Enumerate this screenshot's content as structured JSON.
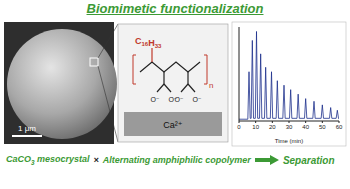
{
  "title": "Biomimetic functionalization",
  "sem_image": {
    "scale_bar": "1 μm"
  },
  "structure": {
    "substituent": "C16H33",
    "repeat": "n",
    "anion": "O⁻",
    "cation": "Ca²⁺"
  },
  "caption": {
    "left": "CaCO3 mesocrystal",
    "operator": "×",
    "right": "Alternating amphiphilic copolymer",
    "result": "Separation"
  },
  "chart_data": {
    "type": "line",
    "x_label": "Time (min)",
    "x": [
      0,
      5.3,
      6,
      6.7,
      7.3,
      8,
      8.7,
      9.8,
      10.5,
      11.2,
      12.3,
      13,
      13.7,
      15.3,
      16,
      16.7,
      18.8,
      19.5,
      20.2,
      22.3,
      23,
      23.7,
      26.3,
      27,
      27.7,
      30.3,
      31,
      31.7,
      34.8,
      35.5,
      36.2,
      39.3,
      40,
      40.7,
      44.3,
      45,
      45.7,
      49.3,
      50,
      50.7,
      54.3,
      55,
      55.7,
      58.3,
      59,
      59.7,
      60
    ],
    "values": [
      0.02,
      0.02,
      0.55,
      0.03,
      0.03,
      0.9,
      0.03,
      0.03,
      1.0,
      0.03,
      0.03,
      0.75,
      0.03,
      0.03,
      0.6,
      0.03,
      0.03,
      0.55,
      0.03,
      0.03,
      0.45,
      0.03,
      0.03,
      0.4,
      0.03,
      0.03,
      0.35,
      0.03,
      0.03,
      0.3,
      0.03,
      0.03,
      0.25,
      0.03,
      0.03,
      0.22,
      0.03,
      0.03,
      0.18,
      0.03,
      0.03,
      0.15,
      0.03,
      0.03,
      0.12,
      0.03,
      0.02
    ],
    "xlim": [
      0,
      60
    ],
    "xticks": [
      0,
      10,
      20,
      30,
      40,
      50,
      60
    ],
    "ylim": [
      0,
      1.05
    ],
    "tick_labels": "x",
    "color": "#1c2f8c"
  }
}
